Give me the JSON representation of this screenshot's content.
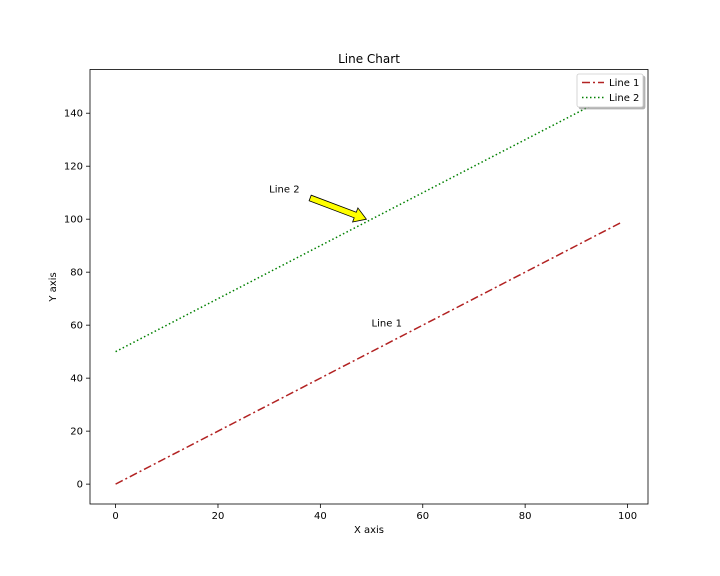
{
  "chart_data": {
    "type": "line",
    "title": "Line Chart",
    "xlabel": "X axis",
    "ylabel": "Y axis",
    "xlim": [
      -5,
      104
    ],
    "ylim": [
      -7.5,
      156.5
    ],
    "xticks": [
      0,
      20,
      40,
      60,
      80,
      100
    ],
    "yticks": [
      0,
      20,
      40,
      60,
      80,
      100,
      120,
      140
    ],
    "grid": false,
    "legend_position": "top-right",
    "series": [
      {
        "name": "Line 1",
        "color": "#b22222",
        "style": "dashdot",
        "x": [
          0,
          99
        ],
        "y": [
          0,
          99
        ]
      },
      {
        "name": "Line 2",
        "color": "#008000",
        "style": "dotted",
        "x": [
          0,
          99
        ],
        "y": [
          50,
          149
        ]
      }
    ],
    "annotations": [
      {
        "text": "Line 2",
        "x": 30,
        "y": 110,
        "arrow": true,
        "arrow_start": [
          38,
          108
        ],
        "arrow_to": [
          49,
          100
        ],
        "arrow_color": "#ffff00"
      },
      {
        "text": "Line 1",
        "x": 50,
        "y": 59.5,
        "arrow": false
      }
    ]
  }
}
